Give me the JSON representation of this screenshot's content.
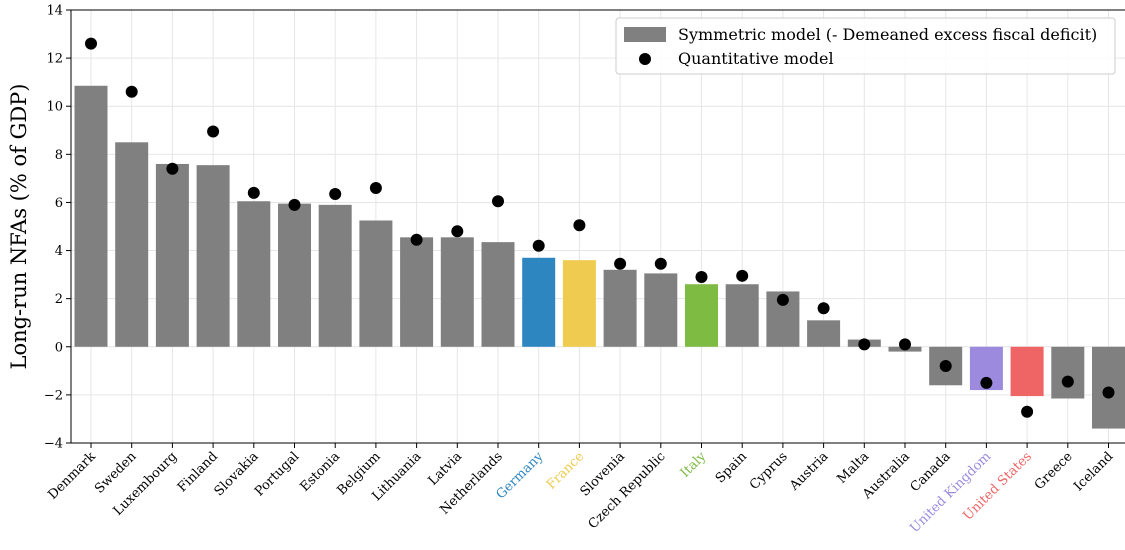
{
  "chart_data": {
    "type": "bar",
    "title": "",
    "xlabel": "",
    "ylabel": "Long-run NFAs (% of GDP)",
    "ylim": [
      -4,
      14
    ],
    "yticks": [
      -4,
      -2,
      0,
      2,
      4,
      6,
      8,
      10,
      12,
      14
    ],
    "grid": true,
    "legend_position": "top-right",
    "categories": [
      "Denmark",
      "Sweden",
      "Luxembourg",
      "Finland",
      "Slovakia",
      "Portugal",
      "Estonia",
      "Belgium",
      "Lithuania",
      "Latvia",
      "Netherlands",
      "Germany",
      "France",
      "Slovenia",
      "Czech Republic",
      "Italy",
      "Spain",
      "Cyprus",
      "Austria",
      "Malta",
      "Australia",
      "Canada",
      "United Kingdom",
      "United States",
      "Greece",
      "Iceland"
    ],
    "series": [
      {
        "name": "Symmetric model (- Demeaned excess fiscal deficit)",
        "kind": "bar",
        "color": "#808080",
        "values": [
          10.85,
          8.5,
          7.6,
          7.55,
          6.05,
          5.95,
          5.9,
          5.25,
          4.55,
          4.55,
          4.35,
          3.7,
          3.6,
          3.2,
          3.05,
          2.6,
          2.6,
          2.3,
          1.1,
          0.3,
          -0.2,
          -1.6,
          -1.8,
          -2.05,
          -2.15,
          -3.4
        ]
      },
      {
        "name": "Quantitative model",
        "kind": "scatter",
        "color": "#000000",
        "values": [
          12.6,
          10.6,
          7.4,
          8.95,
          6.4,
          5.9,
          6.35,
          6.6,
          4.45,
          4.8,
          6.05,
          4.2,
          5.05,
          3.45,
          3.45,
          2.9,
          2.95,
          1.95,
          1.6,
          0.1,
          0.1,
          -0.8,
          -1.5,
          -2.7,
          -1.45,
          -1.9
        ]
      }
    ],
    "highlight_colors": {
      "Germany": "#2e86c1",
      "France": "#efcb4f",
      "Italy": "#7dbb42",
      "United Kingdom": "#9b8ade",
      "United States": "#ef6464"
    },
    "default_label_color": "#000000"
  }
}
